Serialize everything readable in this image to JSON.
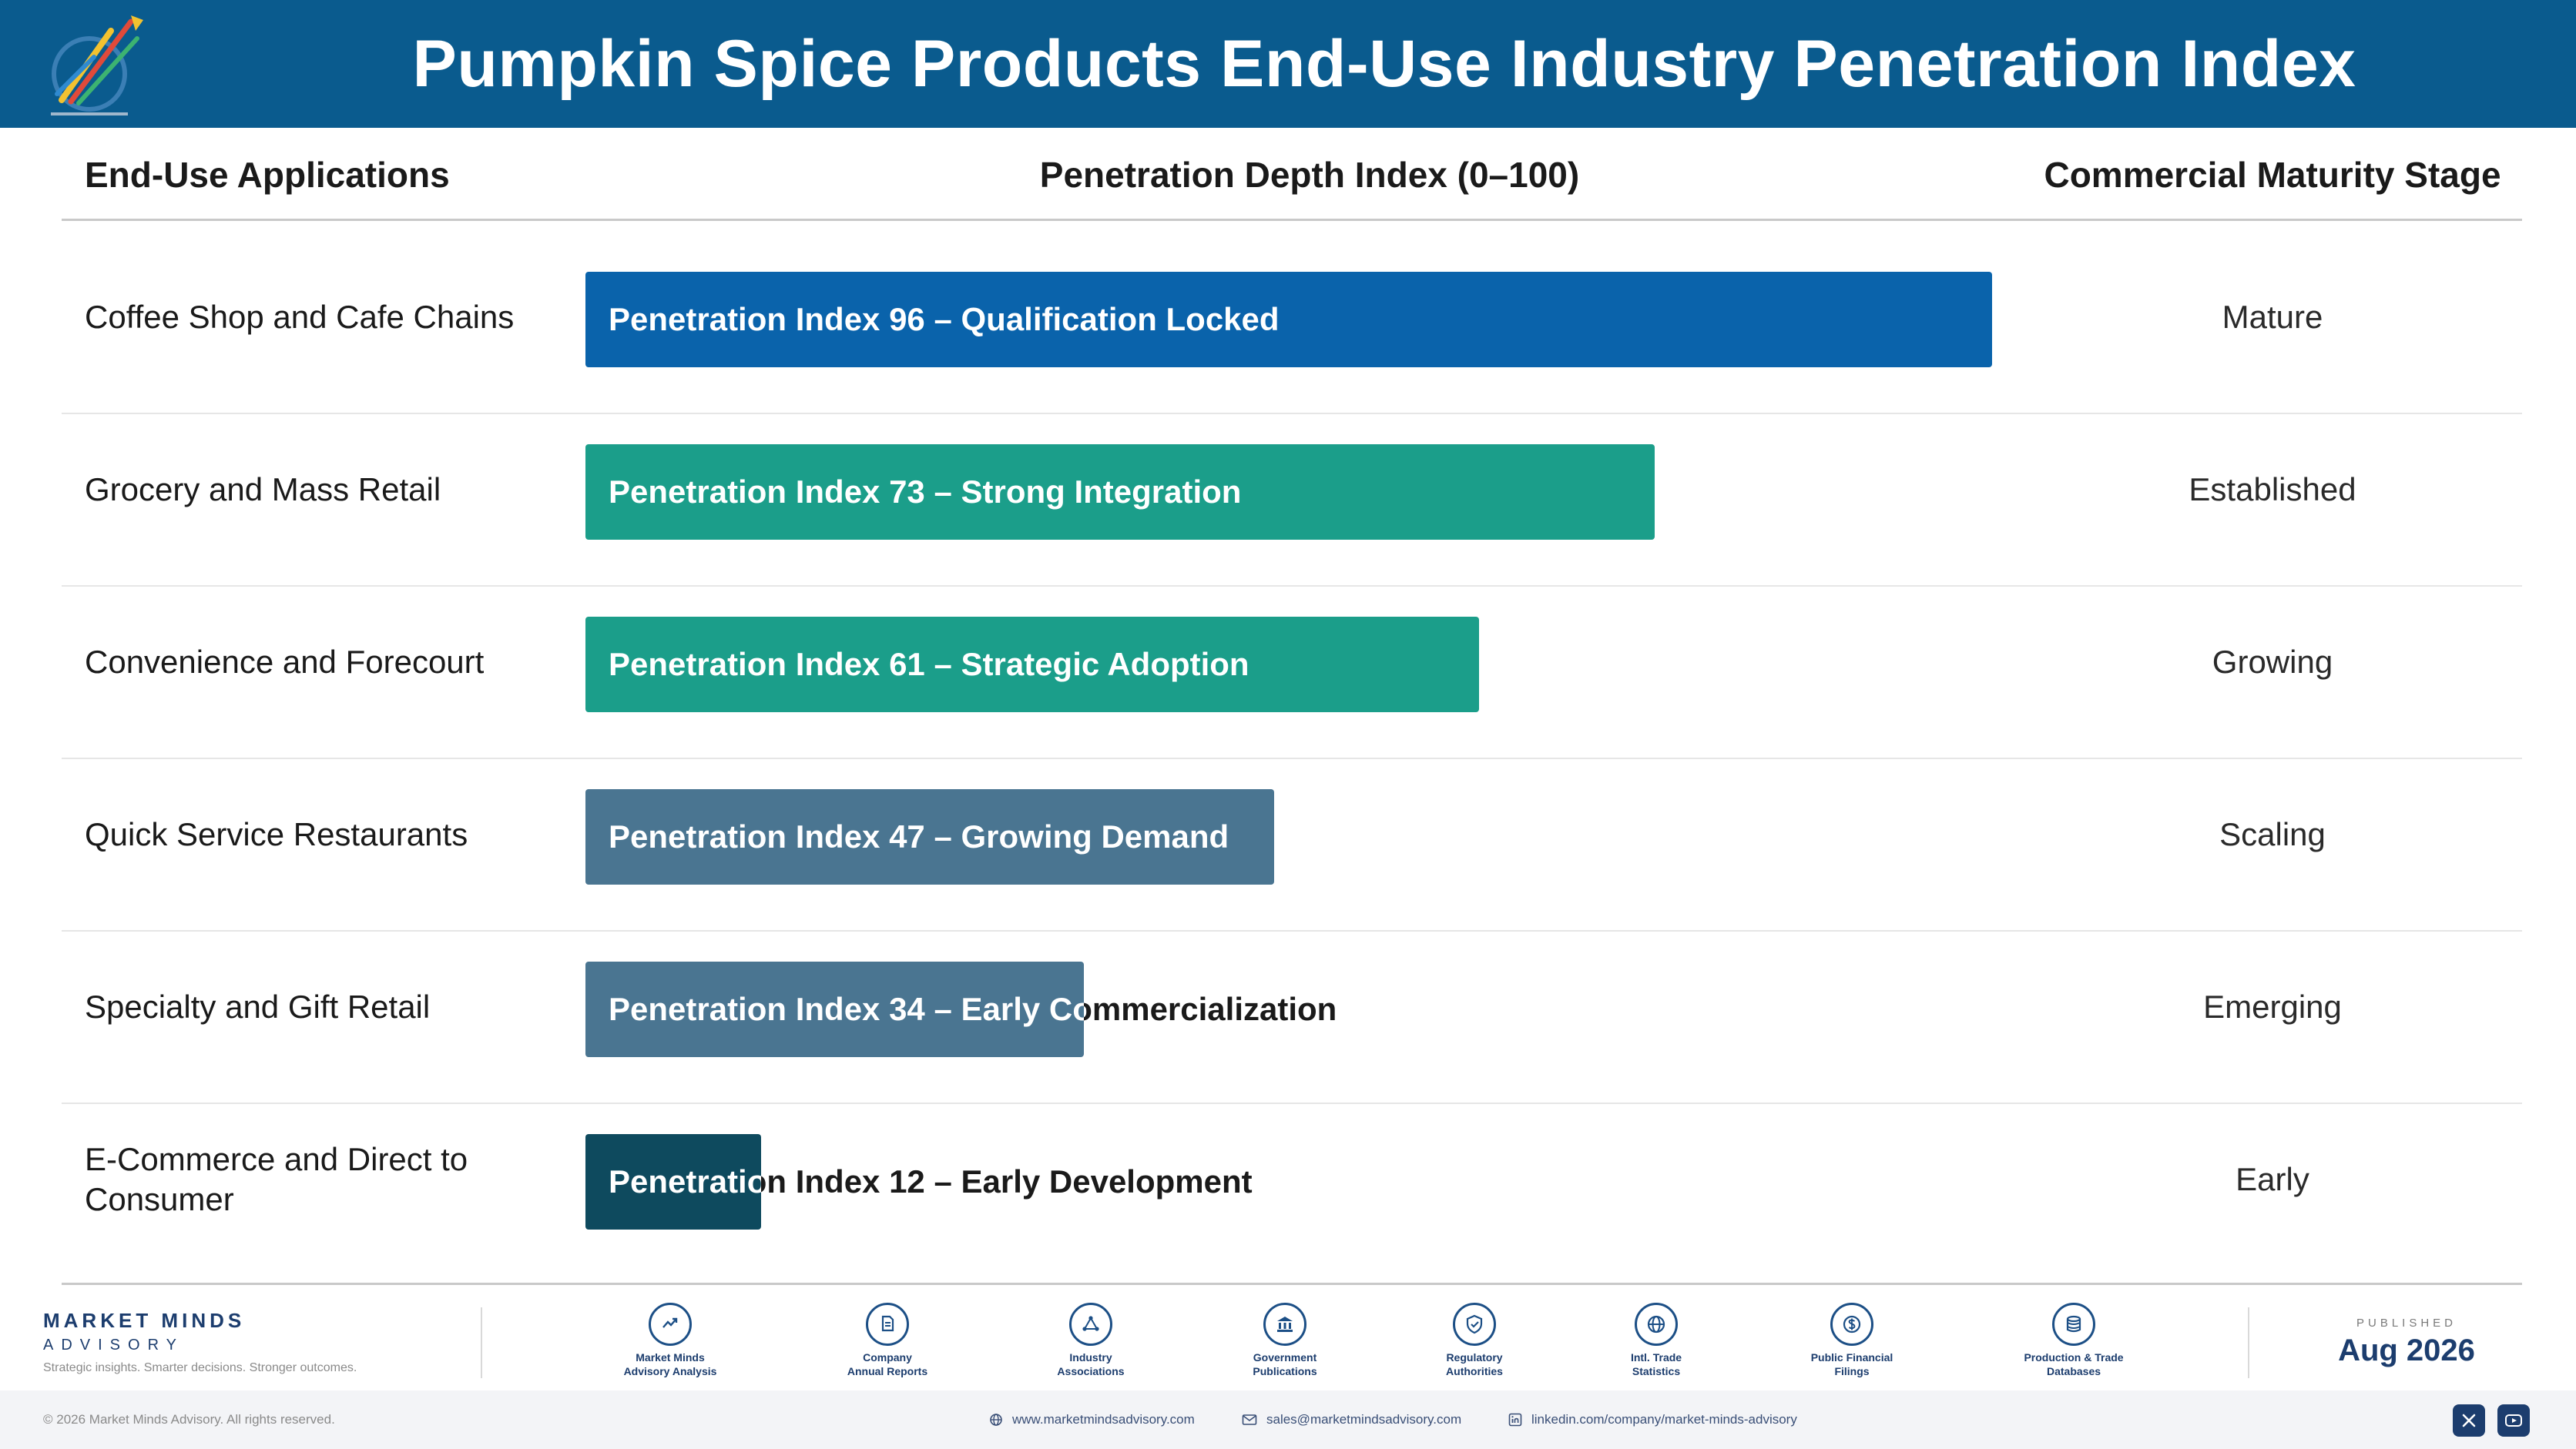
{
  "header": {
    "title": "Pumpkin Spice Products End-Use Industry Penetration Index"
  },
  "columns": {
    "applications": "End-Use Applications",
    "depth": "Penetration Depth Index (0–100)",
    "stage": "Commercial Maturity Stage"
  },
  "chart_data": {
    "type": "bar",
    "orientation": "horizontal",
    "xlim": [
      0,
      100
    ],
    "categories": [
      "Coffee Shop and Cafe Chains",
      "Grocery and Mass Retail",
      "Convenience and Forecourt",
      "Quick Service Restaurants",
      "Specialty and Gift Retail",
      "E-Commerce and Direct to Consumer"
    ],
    "values": [
      96,
      73,
      61,
      47,
      34,
      12
    ],
    "bar_labels": [
      "Penetration Index 96 – Qualification Locked",
      "Penetration Index 73 – Strong Integration",
      "Penetration Index 61 – Strategic Adoption",
      "Penetration Index 47 – Growing Demand",
      "Penetration Index 34 – Early Commercialization",
      "Penetration Index 12 – Early Development"
    ],
    "bar_colors": [
      "#0a63ab",
      "#1b9e8a",
      "#1b9e8a",
      "#4a7591",
      "#4a7591",
      "#0e4a5e"
    ],
    "stages": [
      "Mature",
      "Established",
      "Growing",
      "Scaling",
      "Emerging",
      "Early"
    ]
  },
  "footer": {
    "brand_name": "MARKET MINDS",
    "brand_sub": "ADVISORY",
    "tagline": "Strategic insights. Smarter decisions. Stronger outcomes.",
    "sources": [
      {
        "line1": "Market Minds",
        "line2": "Advisory Analysis",
        "icon": "chart-trend-icon"
      },
      {
        "line1": "Company",
        "line2": "Annual Reports",
        "icon": "document-icon"
      },
      {
        "line1": "Industry",
        "line2": "Associations",
        "icon": "network-icon"
      },
      {
        "line1": "Government",
        "line2": "Publications",
        "icon": "government-building-icon"
      },
      {
        "line1": "Regulatory",
        "line2": "Authorities",
        "icon": "shield-check-icon"
      },
      {
        "line1": "Intl. Trade",
        "line2": "Statistics",
        "icon": "globe-icon"
      },
      {
        "line1": "Public Financial",
        "line2": "Filings",
        "icon": "dollar-coin-icon"
      },
      {
        "line1": "Production & Trade",
        "line2": "Databases",
        "icon": "database-icon"
      }
    ],
    "published_label": "PUBLISHED",
    "published_date": "Aug 2026",
    "copyright": "© 2026 Market Minds Advisory. All rights reserved.",
    "website": "www.marketmindsadvisory.com",
    "email": "sales@marketmindsadvisory.com",
    "linkedin": "linkedin.com/company/market-minds-advisory"
  },
  "colors": {
    "header_bg": "#0a5b8e",
    "brand_navy": "#1c3d6e"
  }
}
